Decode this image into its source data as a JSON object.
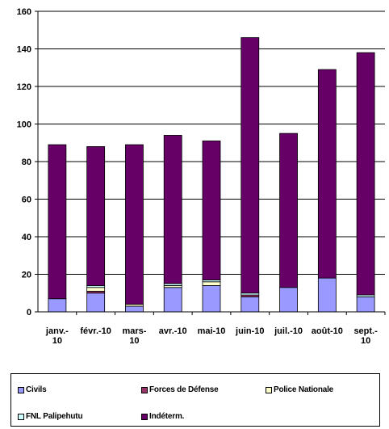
{
  "chart_data": {
    "type": "bar",
    "stacked": true,
    "title": "",
    "xlabel": "",
    "ylabel": "",
    "ylim": [
      0,
      160
    ],
    "yticks": [
      0,
      20,
      40,
      60,
      80,
      100,
      120,
      140,
      160
    ],
    "grid": "horizontal",
    "legend_position": "bottom",
    "categories": [
      [
        "janv.-",
        "10"
      ],
      [
        "févr.-10"
      ],
      [
        "mars-",
        "10"
      ],
      [
        "avr.-10"
      ],
      [
        "mai-10"
      ],
      [
        "juin-10"
      ],
      [
        "juil.-10"
      ],
      [
        "août-10"
      ],
      [
        "sept.-",
        "10"
      ]
    ],
    "series": [
      {
        "name": "Civils",
        "color": "#9999ff",
        "values": [
          7,
          10,
          3,
          13,
          14,
          8,
          13,
          18,
          8
        ]
      },
      {
        "name": "Forces de Défense",
        "color": "#993366",
        "values": [
          0,
          1,
          0,
          0,
          0,
          1,
          0,
          0,
          0
        ]
      },
      {
        "name": "Police Nationale",
        "color": "#ffffcc",
        "values": [
          0,
          2,
          1,
          1,
          2,
          0,
          0,
          0,
          0
        ]
      },
      {
        "name": "FNL Palipehutu",
        "color": "#ccffff",
        "values": [
          0,
          1,
          0,
          1,
          1,
          1,
          0,
          0,
          1
        ]
      },
      {
        "name": "Indéterm.",
        "color": "#660066",
        "values": [
          82,
          74,
          85,
          79,
          74,
          136,
          82,
          111,
          129
        ]
      }
    ]
  },
  "legend": {
    "items": [
      "Civils",
      "Forces de Défense",
      "Police Nationale",
      "FNL Palipehutu",
      "Indéterm."
    ]
  }
}
